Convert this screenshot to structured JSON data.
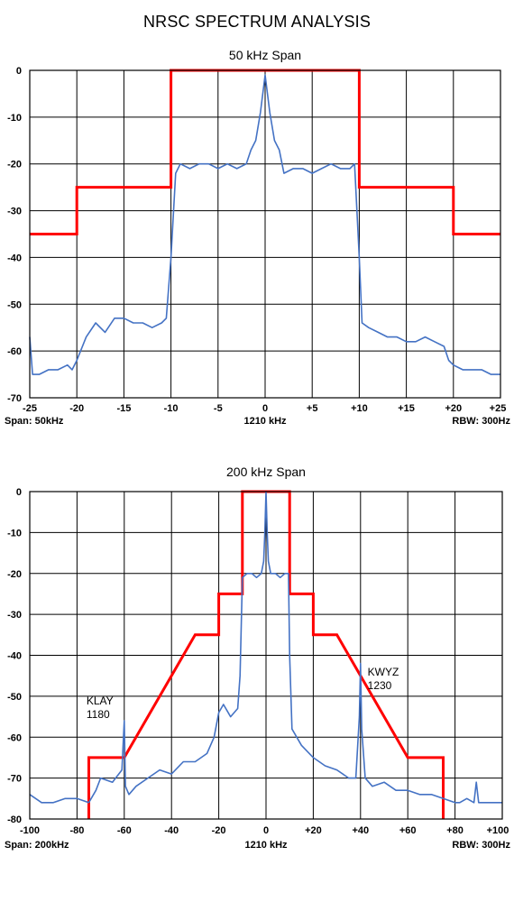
{
  "title": "NRSC SPECTRUM ANALYSIS",
  "charts": {
    "top": {
      "colors": {
        "mask": "#ff0000",
        "trace": "#4472c4",
        "grid": "#000000"
      },
      "chart_data": {
        "type": "line",
        "title": "50 kHz Span",
        "xlim": [
          -25,
          25
        ],
        "ylim": [
          -70,
          0
        ],
        "grid": true,
        "x_ticks": [
          -25,
          -20,
          -15,
          -10,
          -5,
          0,
          5,
          10,
          15,
          20,
          25
        ],
        "x_tick_labels": [
          "-25",
          "-20",
          "-15",
          "-10",
          "-5",
          "0",
          "+5",
          "+10",
          "+15",
          "+20",
          "+25"
        ],
        "y_ticks": [
          0,
          -10,
          -20,
          -30,
          -40,
          -50,
          -60,
          -70
        ],
        "y_tick_labels": [
          "0",
          "-10",
          "-20",
          "-30",
          "-40",
          "-50",
          "-60",
          "-70"
        ],
        "footer": {
          "left": "Span: 50kHz",
          "center": "1210 kHz",
          "right": "RBW: 300Hz"
        },
        "annotations": [],
        "series": [
          {
            "role": "mask",
            "x": [
              -25,
              -20,
              -20,
              -10,
              -10,
              10,
              10,
              20,
              20,
              25
            ],
            "y": [
              -35,
              -35,
              -25,
              -25,
              0,
              0,
              -25,
              -25,
              -35,
              -35
            ]
          },
          {
            "role": "spectrum",
            "x": [
              -25,
              -24.7,
              -24,
              -23,
              -22,
              -21,
              -20.5,
              -20,
              -19,
              -18,
              -17,
              -16,
              -15,
              -14,
              -13,
              -12,
              -11,
              -10.5,
              -10,
              -9.5,
              -9,
              -8,
              -7,
              -6,
              -5,
              -4,
              -3,
              -2,
              -1.5,
              -1,
              -0.5,
              0,
              0.5,
              1,
              1.5,
              2,
              3,
              4,
              5,
              6,
              7,
              8,
              9,
              9.5,
              10,
              10.3,
              11,
              12,
              13,
              14,
              15,
              16,
              17,
              18,
              19,
              19.5,
              20,
              21,
              22,
              23,
              24,
              25
            ],
            "y": [
              -57,
              -65,
              -65,
              -64,
              -64,
              -63,
              -64,
              -62,
              -57,
              -54,
              -56,
              -53,
              -53,
              -54,
              -54,
              -55,
              -54,
              -53,
              -40,
              -22,
              -20,
              -21,
              -20,
              -20,
              -21,
              -20,
              -21,
              -20,
              -17,
              -15,
              -9,
              -1,
              -9,
              -15,
              -17,
              -22,
              -21,
              -21,
              -22,
              -21,
              -20,
              -21,
              -21,
              -20,
              -40,
              -54,
              -55,
              -56,
              -57,
              -57,
              -58,
              -58,
              -57,
              -58,
              -59,
              -62,
              -63,
              -64,
              -64,
              -64,
              -65,
              -65
            ]
          }
        ]
      }
    },
    "bottom": {
      "colors": {
        "mask": "#ff0000",
        "trace": "#4472c4",
        "grid": "#000000"
      },
      "chart_data": {
        "type": "line",
        "title": "200 kHz Span",
        "xlim": [
          -100,
          100
        ],
        "ylim": [
          -80,
          0
        ],
        "grid": true,
        "x_ticks": [
          -100,
          -80,
          -60,
          -40,
          -20,
          0,
          20,
          40,
          60,
          80,
          100
        ],
        "x_tick_labels": [
          "-100",
          "-80",
          "-60",
          "-40",
          "-20",
          "0",
          "+20",
          "+40",
          "+60",
          "+80",
          "+100"
        ],
        "y_ticks": [
          0,
          -10,
          -20,
          -30,
          -40,
          -50,
          -60,
          -70,
          -80
        ],
        "y_tick_labels": [
          "0",
          "-10",
          "-20",
          "-30",
          "-40",
          "-50",
          "-60",
          "-70",
          "-80"
        ],
        "footer": {
          "left": "Span: 200kHz",
          "center": "1210 kHz",
          "right": "RBW: 300Hz"
        },
        "annotations": [
          {
            "lines": [
              "KLAY",
              "1180"
            ],
            "x": -76,
            "y": -52
          },
          {
            "lines": [
              "KWYZ",
              "1230"
            ],
            "x": 43,
            "y": -45
          }
        ],
        "series": [
          {
            "role": "mask",
            "x": [
              -75,
              -75,
              -60,
              -30,
              -20,
              -20,
              -10,
              -10,
              10,
              10,
              20,
              20,
              30,
              60,
              75,
              75
            ],
            "y": [
              -80,
              -65,
              -65,
              -35,
              -35,
              -25,
              -25,
              0,
              0,
              -25,
              -25,
              -35,
              -35,
              -65,
              -65,
              -80
            ],
            "segments": [
              [
                0,
                1,
                2,
                3,
                4,
                5,
                6,
                7,
                8,
                9,
                10,
                11,
                12,
                13,
                14,
                15
              ]
            ]
          },
          {
            "role": "spectrum",
            "x": [
              -100,
              -95,
              -90,
              -85,
              -80,
              -75,
              -72,
              -70,
              -65,
              -61,
              -60,
              -59.5,
              -58,
              -55,
              -50,
              -45,
              -40,
              -35,
              -30,
              -25,
              -22,
              -20,
              -18,
              -15,
              -12,
              -11,
              -10,
              -8,
              -6,
              -4,
              -2,
              -1,
              -0.5,
              0,
              0.5,
              1,
              2,
              4,
              6,
              8,
              9.5,
              10,
              11,
              15,
              20,
              25,
              30,
              35,
              38,
              39.5,
              40,
              40.5,
              42,
              45,
              50,
              55,
              60,
              65,
              70,
              75,
              80,
              82,
              85,
              88,
              89,
              90,
              95,
              100
            ],
            "y": [
              -74,
              -76,
              -76,
              -75,
              -75,
              -76,
              -73,
              -70,
              -71,
              -68,
              -56,
              -72,
              -74,
              -72,
              -70,
              -68,
              -69,
              -66,
              -66,
              -64,
              -60,
              -54,
              -52,
              -55,
              -53,
              -45,
              -21,
              -20,
              -20,
              -21,
              -20,
              -17,
              -10,
              0,
              -10,
              -17,
              -20,
              -20,
              -21,
              -20,
              -20,
              -40,
              -58,
              -62,
              -65,
              -67,
              -68,
              -70,
              -70,
              -55,
              -42,
              -58,
              -70,
              -72,
              -71,
              -73,
              -73,
              -74,
              -74,
              -75,
              -76,
              -76,
              -75,
              -76,
              -71,
              -76,
              -76,
              -76
            ]
          }
        ]
      }
    }
  }
}
